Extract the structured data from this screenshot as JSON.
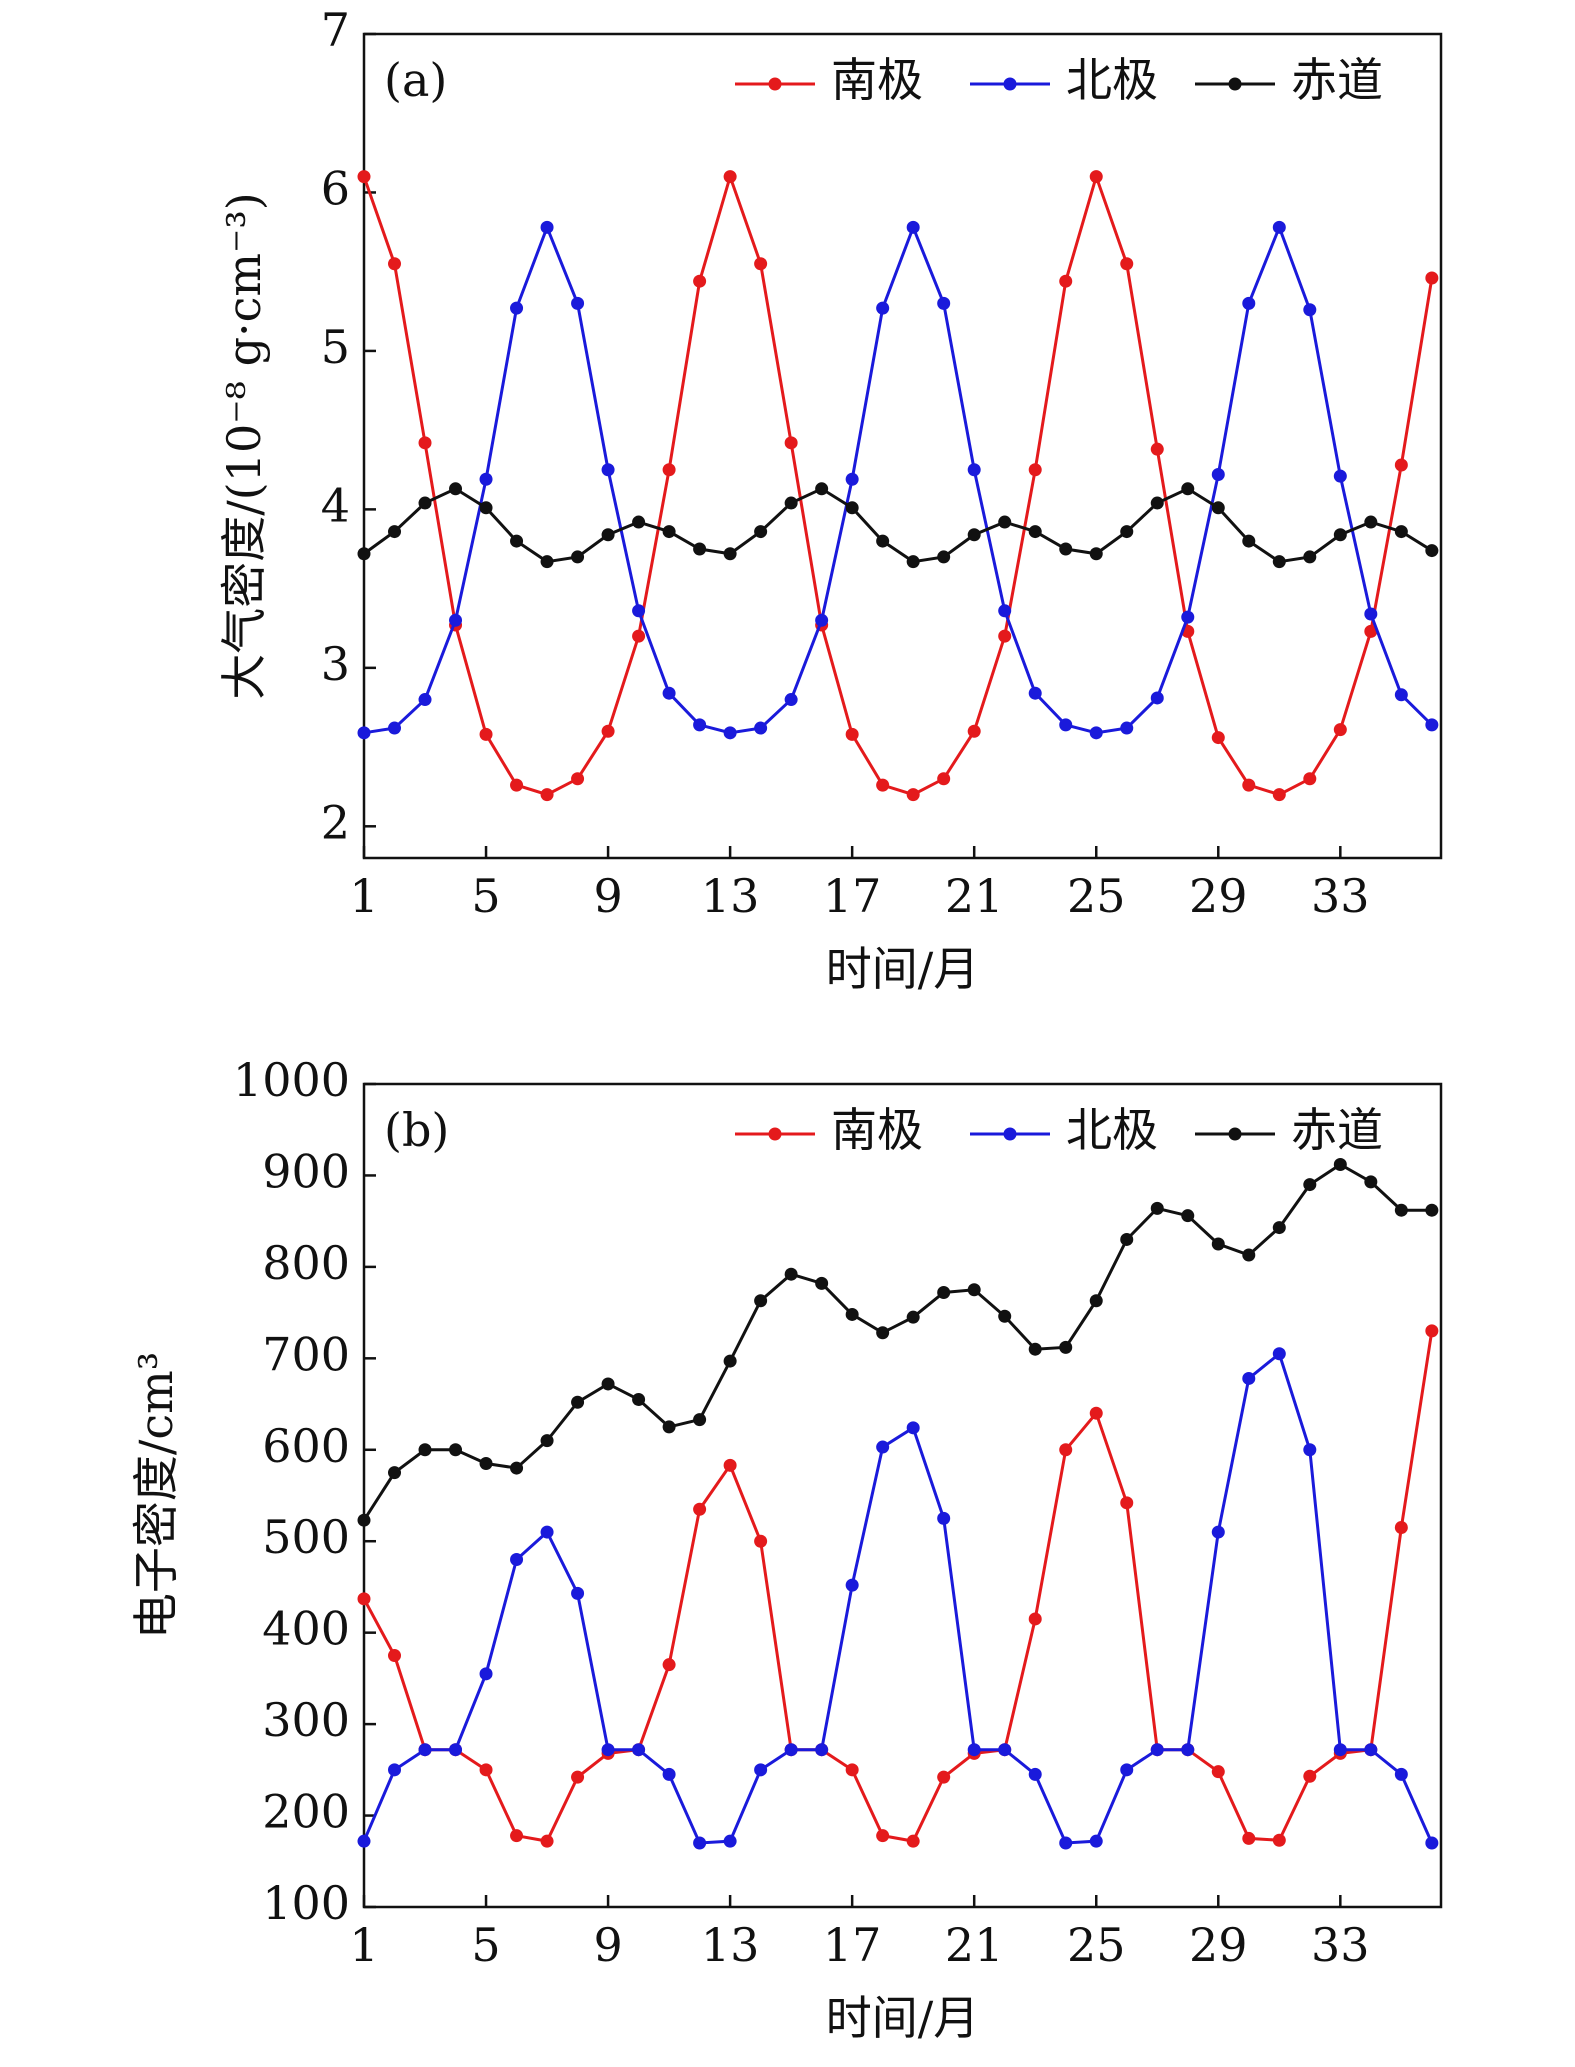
{
  "chart_data": [
    {
      "type": "line",
      "panel_label": "(a)",
      "x_label": "时间/月",
      "y_label": "大气密度/(10⁻⁸ g·cm⁻³)",
      "x": [
        1,
        2,
        3,
        4,
        5,
        6,
        7,
        8,
        9,
        10,
        11,
        12,
        13,
        14,
        15,
        16,
        17,
        18,
        19,
        20,
        21,
        22,
        23,
        24,
        25,
        26,
        27,
        28,
        29,
        30,
        31,
        32,
        33,
        34,
        35,
        36
      ],
      "xlim": [
        1,
        36.3
      ],
      "xticks": [
        1,
        5,
        9,
        13,
        17,
        21,
        25,
        29,
        33
      ],
      "ylim": [
        1.8,
        7
      ],
      "yticks": [
        2,
        3,
        4,
        5,
        6,
        7
      ],
      "legend": "top-right",
      "series": [
        {
          "name": "南极",
          "color": "#e41a1c",
          "values": [
            6.1,
            5.55,
            4.42,
            3.27,
            2.58,
            2.26,
            2.2,
            2.3,
            2.6,
            3.2,
            4.25,
            5.44,
            6.1,
            5.55,
            4.42,
            3.27,
            2.58,
            2.26,
            2.2,
            2.3,
            2.6,
            3.2,
            4.25,
            5.44,
            6.1,
            5.55,
            4.38,
            3.23,
            2.56,
            2.26,
            2.2,
            2.3,
            2.61,
            3.23,
            4.28,
            5.46
          ]
        },
        {
          "name": "北极",
          "color": "#1a1adb",
          "values": [
            2.59,
            2.62,
            2.8,
            3.3,
            4.19,
            5.27,
            5.78,
            5.3,
            4.25,
            3.36,
            2.84,
            2.64,
            2.59,
            2.62,
            2.8,
            3.3,
            4.19,
            5.27,
            5.78,
            5.3,
            4.25,
            3.36,
            2.84,
            2.64,
            2.59,
            2.62,
            2.81,
            3.32,
            4.22,
            5.3,
            5.78,
            5.26,
            4.21,
            3.34,
            2.83,
            2.64
          ]
        },
        {
          "name": "赤道",
          "color": "#111111",
          "values": [
            3.72,
            3.86,
            4.04,
            4.13,
            4.01,
            3.8,
            3.67,
            3.7,
            3.84,
            3.92,
            3.86,
            3.75,
            3.72,
            3.86,
            4.04,
            4.13,
            4.01,
            3.8,
            3.67,
            3.7,
            3.84,
            3.92,
            3.86,
            3.75,
            3.72,
            3.86,
            4.04,
            4.13,
            4.01,
            3.8,
            3.67,
            3.7,
            3.84,
            3.92,
            3.86,
            3.74
          ]
        }
      ]
    },
    {
      "type": "line",
      "panel_label": "(b)",
      "x_label": "时间/月",
      "y_label": "电子密度/cm³",
      "x": [
        1,
        2,
        3,
        4,
        5,
        6,
        7,
        8,
        9,
        10,
        11,
        12,
        13,
        14,
        15,
        16,
        17,
        18,
        19,
        20,
        21,
        22,
        23,
        24,
        25,
        26,
        27,
        28,
        29,
        30,
        31,
        32,
        33,
        34,
        35,
        36
      ],
      "xlim": [
        1,
        36.3
      ],
      "xticks": [
        1,
        5,
        9,
        13,
        17,
        21,
        25,
        29,
        33
      ],
      "ylim": [
        100,
        1000
      ],
      "yticks": [
        100,
        200,
        300,
        400,
        500,
        600,
        700,
        800,
        900,
        1000
      ],
      "legend": "top-right",
      "series": [
        {
          "name": "南极",
          "color": "#e41a1c",
          "values": [
            437,
            375,
            272,
            272,
            250,
            178,
            172,
            242,
            268,
            272,
            365,
            535,
            583,
            500,
            272,
            272,
            250,
            178,
            172,
            242,
            268,
            272,
            415,
            600,
            640,
            542,
            272,
            272,
            248,
            175,
            173,
            243,
            268,
            272,
            515,
            730
          ]
        },
        {
          "name": "北极",
          "color": "#1a1adb",
          "values": [
            172,
            250,
            272,
            272,
            355,
            480,
            510,
            443,
            272,
            272,
            245,
            170,
            172,
            250,
            272,
            272,
            452,
            603,
            624,
            525,
            272,
            272,
            245,
            170,
            172,
            250,
            272,
            272,
            510,
            678,
            705,
            600,
            272,
            272,
            245,
            170
          ]
        },
        {
          "name": "赤道",
          "color": "#111111",
          "values": [
            523,
            575,
            600,
            600,
            585,
            580,
            610,
            652,
            672,
            655,
            625,
            633,
            697,
            763,
            792,
            782,
            748,
            728,
            745,
            772,
            775,
            746,
            710,
            712,
            763,
            830,
            864,
            856,
            825,
            813,
            843,
            890,
            912,
            893,
            862,
            862
          ]
        }
      ]
    }
  ]
}
